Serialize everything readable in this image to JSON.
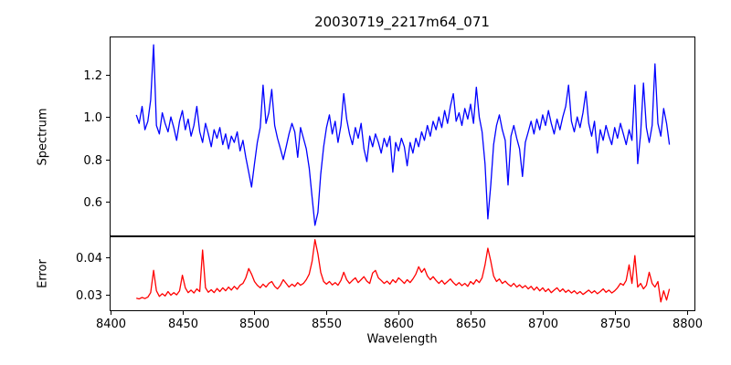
{
  "figure": {
    "background": "#ffffff",
    "axis_color": "#000000"
  },
  "chart_data": [
    {
      "type": "line",
      "title": "20030719_2217m64_071",
      "ylabel": "Spectrum",
      "xlim": [
        8399.5,
        8806
      ],
      "ylim": [
        0.438,
        1.379
      ],
      "yticks": [
        0.6,
        0.8,
        1.0,
        1.2
      ],
      "ytick_labels": [
        "0.6",
        "0.8",
        "1.0",
        "1.2"
      ],
      "grid": false,
      "legend": "none",
      "series": [
        {
          "name": "spectrum",
          "color": "#0000ff",
          "x_start": 8418,
          "x_step": 2,
          "values": [
            1.01,
            0.97,
            1.05,
            0.94,
            0.98,
            1.08,
            1.34,
            0.96,
            0.92,
            1.02,
            0.97,
            0.93,
            1.0,
            0.95,
            0.89,
            0.98,
            1.03,
            0.94,
            0.99,
            0.91,
            0.96,
            1.05,
            0.93,
            0.88,
            0.97,
            0.92,
            0.86,
            0.94,
            0.9,
            0.95,
            0.87,
            0.92,
            0.85,
            0.91,
            0.88,
            0.93,
            0.84,
            0.89,
            0.81,
            0.74,
            0.67,
            0.78,
            0.88,
            0.95,
            1.15,
            0.97,
            1.02,
            1.13,
            0.96,
            0.9,
            0.85,
            0.8,
            0.86,
            0.92,
            0.97,
            0.93,
            0.81,
            0.95,
            0.9,
            0.85,
            0.76,
            0.62,
            0.49,
            0.55,
            0.73,
            0.86,
            0.95,
            1.01,
            0.92,
            0.98,
            0.88,
            0.96,
            1.11,
            0.99,
            0.92,
            0.87,
            0.95,
            0.9,
            0.97,
            0.85,
            0.79,
            0.91,
            0.86,
            0.92,
            0.88,
            0.83,
            0.9,
            0.86,
            0.91,
            0.74,
            0.88,
            0.84,
            0.9,
            0.86,
            0.77,
            0.88,
            0.83,
            0.9,
            0.86,
            0.93,
            0.89,
            0.96,
            0.91,
            0.98,
            0.94,
            1.0,
            0.95,
            1.03,
            0.97,
            1.05,
            1.11,
            0.98,
            1.02,
            0.96,
            1.04,
            0.99,
            1.06,
            0.97,
            1.14,
            1.0,
            0.93,
            0.78,
            0.52,
            0.68,
            0.87,
            0.96,
            1.01,
            0.94,
            0.89,
            0.68,
            0.91,
            0.96,
            0.9,
            0.85,
            0.72,
            0.88,
            0.93,
            0.98,
            0.92,
            0.99,
            0.94,
            1.01,
            0.96,
            1.03,
            0.97,
            0.92,
            0.99,
            0.94,
            1.0,
            1.05,
            1.15,
            0.98,
            0.93,
            1.0,
            0.95,
            1.02,
            1.12,
            0.97,
            0.91,
            0.98,
            0.83,
            0.94,
            0.89,
            0.96,
            0.91,
            0.87,
            0.95,
            0.9,
            0.97,
            0.92,
            0.87,
            0.94,
            0.89,
            1.15,
            0.78,
            0.92,
            1.16,
            0.95,
            0.88,
            0.96,
            1.25,
            0.97,
            0.91,
            1.04,
            0.97,
            0.87
          ]
        }
      ]
    },
    {
      "type": "line",
      "ylabel": "Error",
      "xlabel": "Wavelength",
      "xlim": [
        8399.5,
        8806
      ],
      "ylim": [
        0.0255,
        0.0457
      ],
      "yticks": [
        0.03,
        0.04
      ],
      "ytick_labels": [
        "0.03",
        "0.04"
      ],
      "xticks": [
        8400,
        8450,
        8500,
        8550,
        8600,
        8650,
        8700,
        8750,
        8800
      ],
      "xtick_labels": [
        "8400",
        "8450",
        "8500",
        "8550",
        "8600",
        "8650",
        "8700",
        "8750",
        "8800"
      ],
      "grid": false,
      "legend": "none",
      "series": [
        {
          "name": "error",
          "color": "#ff0000",
          "x_start": 8418,
          "x_step": 2,
          "values": [
            0.029,
            0.0288,
            0.0292,
            0.0289,
            0.0293,
            0.0305,
            0.0365,
            0.031,
            0.0295,
            0.0302,
            0.0296,
            0.0308,
            0.0298,
            0.0305,
            0.0299,
            0.031,
            0.0352,
            0.0318,
            0.0305,
            0.0312,
            0.0304,
            0.0315,
            0.0308,
            0.042,
            0.0318,
            0.0306,
            0.0313,
            0.0305,
            0.0316,
            0.0308,
            0.0318,
            0.031,
            0.032,
            0.0312,
            0.0322,
            0.0314,
            0.0325,
            0.033,
            0.0345,
            0.037,
            0.0355,
            0.0335,
            0.0325,
            0.0318,
            0.0328,
            0.032,
            0.033,
            0.0335,
            0.0322,
            0.0315,
            0.0325,
            0.034,
            0.033,
            0.032,
            0.0328,
            0.0322,
            0.0332,
            0.0325,
            0.033,
            0.034,
            0.0355,
            0.039,
            0.0448,
            0.041,
            0.036,
            0.0335,
            0.0328,
            0.0335,
            0.0326,
            0.0332,
            0.0325,
            0.0338,
            0.036,
            0.034,
            0.033,
            0.0338,
            0.0345,
            0.0332,
            0.034,
            0.0348,
            0.0336,
            0.033,
            0.0358,
            0.0365,
            0.0345,
            0.0338,
            0.033,
            0.0336,
            0.0328,
            0.034,
            0.0332,
            0.0345,
            0.0338,
            0.033,
            0.034,
            0.0332,
            0.0342,
            0.0355,
            0.0375,
            0.036,
            0.037,
            0.035,
            0.034,
            0.0348,
            0.0338,
            0.033,
            0.0338,
            0.0328,
            0.0335,
            0.0342,
            0.0332,
            0.0325,
            0.0332,
            0.0324,
            0.033,
            0.0322,
            0.0335,
            0.0328,
            0.034,
            0.0332,
            0.0345,
            0.038,
            0.0425,
            0.039,
            0.035,
            0.0335,
            0.0342,
            0.033,
            0.0336,
            0.0328,
            0.0322,
            0.033,
            0.032,
            0.0326,
            0.0318,
            0.0324,
            0.0315,
            0.0322,
            0.0312,
            0.032,
            0.031,
            0.0318,
            0.0308,
            0.0315,
            0.0305,
            0.0312,
            0.0318,
            0.0308,
            0.0315,
            0.0306,
            0.0312,
            0.0304,
            0.031,
            0.0302,
            0.0308,
            0.03,
            0.0306,
            0.0312,
            0.0304,
            0.031,
            0.0302,
            0.0308,
            0.0315,
            0.0306,
            0.0312,
            0.0304,
            0.031,
            0.0318,
            0.033,
            0.0325,
            0.0338,
            0.038,
            0.033,
            0.0405,
            0.032,
            0.033,
            0.0315,
            0.0325,
            0.036,
            0.033,
            0.032,
            0.0335,
            0.028,
            0.031,
            0.0285,
            0.0315
          ]
        }
      ]
    }
  ]
}
